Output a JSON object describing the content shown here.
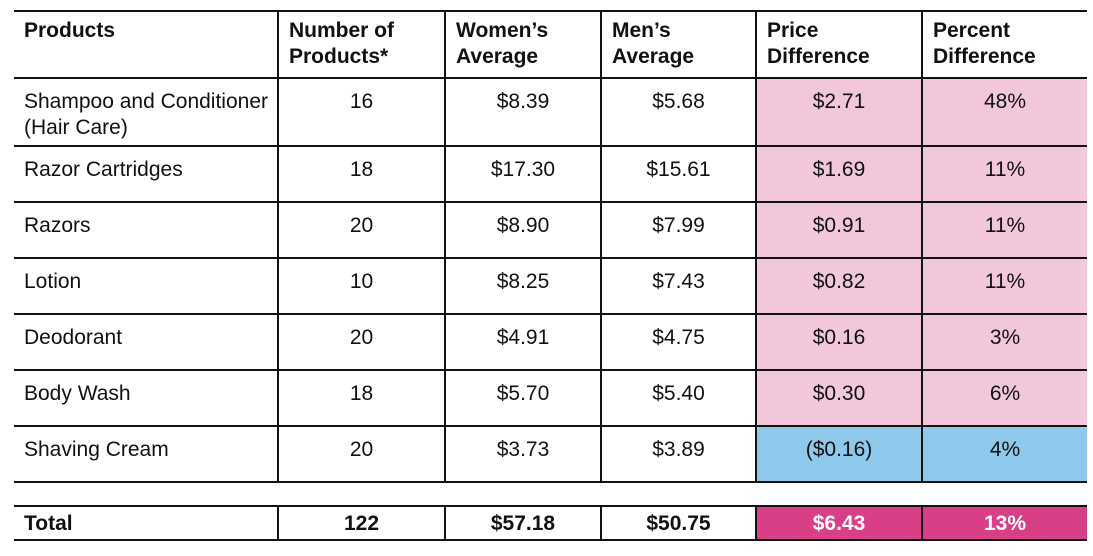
{
  "headers": [
    "Products",
    "Number of Products*",
    "Women’s Average",
    "Men’s Average",
    "Price Difference",
    "Percent Difference"
  ],
  "rows": [
    {
      "product": "Shampoo and Conditioner (Hair Care)",
      "count": "16",
      "women": "$8.39",
      "men": "$5.68",
      "price_diff": "$2.71",
      "pct_diff": "48%",
      "highlight": "pink"
    },
    {
      "product": "Razor Cartridges",
      "count": "18",
      "women": "$17.30",
      "men": "$15.61",
      "price_diff": "$1.69",
      "pct_diff": "11%",
      "highlight": "pink"
    },
    {
      "product": "Razors",
      "count": "20",
      "women": "$8.90",
      "men": "$7.99",
      "price_diff": "$0.91",
      "pct_diff": "11%",
      "highlight": "pink"
    },
    {
      "product": "Lotion",
      "count": "10",
      "women": "$8.25",
      "men": "$7.43",
      "price_diff": "$0.82",
      "pct_diff": "11%",
      "highlight": "pink"
    },
    {
      "product": "Deodorant",
      "count": "20",
      "women": "$4.91",
      "men": "$4.75",
      "price_diff": "$0.16",
      "pct_diff": "3%",
      "highlight": "pink"
    },
    {
      "product": "Body Wash",
      "count": "18",
      "women": "$5.70",
      "men": "$5.40",
      "price_diff": "$0.30",
      "pct_diff": "6%",
      "highlight": "pink"
    },
    {
      "product": "Shaving Cream",
      "count": "20",
      "women": "$3.73",
      "men": "$3.89",
      "price_diff": "($0.16)",
      "pct_diff": "4%",
      "highlight": "blue"
    }
  ],
  "total": {
    "label": "Total",
    "count": "122",
    "women": "$57.18",
    "men": "$50.75",
    "price_diff": "$6.43",
    "pct_diff": "13%"
  },
  "colors": {
    "pink": "#f2c7d9",
    "blue": "#8ec9ec",
    "magenta": "#d93f86"
  }
}
